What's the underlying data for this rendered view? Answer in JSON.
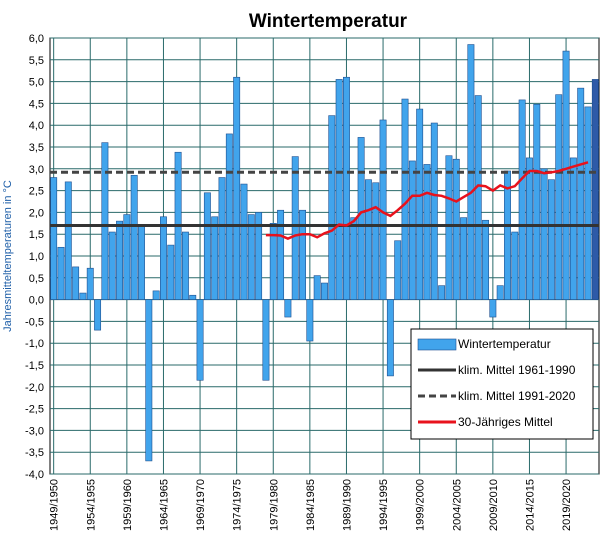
{
  "chart_data": {
    "type": "bar",
    "title": "Wintertemperatur",
    "ylabel": "Jahresmitteltemperaturen in °C",
    "xlabel": "",
    "ylim": [
      -4.0,
      6.0
    ],
    "ytick_labels": [
      "6,0",
      "5,5",
      "5,0",
      "4,5",
      "4,0",
      "3,5",
      "3,0",
      "2,5",
      "2,0",
      "1,5",
      "1,0",
      "0,5",
      "0,0",
      "-0,5",
      "-1,0",
      "-1,5",
      "-2,0",
      "-2,5",
      "-3,0",
      "-3,5",
      "-4,0"
    ],
    "xtick_labels": [
      "1949/1950",
      "1954/1955",
      "1959/1960",
      "1964/1965",
      "1969/1970",
      "1974/1975",
      "1979/1980",
      "1984/1985",
      "1989/1990",
      "1994/1995",
      "1999/2000",
      "2004/2005",
      "2009/2010",
      "2014/2015",
      "2019/2020"
    ],
    "grid": true,
    "legend_position": "lower-right",
    "series": [
      {
        "name": "Wintertemperatur",
        "type": "bar",
        "color": "#41a4ec",
        "highlight_color": "#2e5aa8",
        "first_season": "1949/1950",
        "values": [
          2.8,
          1.2,
          2.7,
          0.75,
          0.15,
          0.72,
          -0.7,
          3.6,
          1.55,
          1.8,
          1.95,
          2.85,
          1.7,
          -3.7,
          0.2,
          1.9,
          1.25,
          3.38,
          1.55,
          0.1,
          -1.85,
          2.45,
          1.9,
          2.8,
          3.8,
          5.1,
          2.65,
          1.95,
          2.0,
          -1.85,
          1.75,
          2.05,
          -0.4,
          3.28,
          2.05,
          -0.95,
          0.55,
          0.38,
          4.22,
          5.05,
          5.1,
          1.88,
          3.72,
          2.75,
          2.68,
          4.12,
          -1.75,
          1.35,
          4.6,
          3.18,
          4.37,
          3.1,
          4.05,
          0.32,
          3.3,
          3.22,
          1.88,
          5.85,
          4.68,
          1.82,
          -0.4,
          0.32,
          2.95,
          1.55,
          4.58,
          3.25,
          4.48,
          3.0,
          2.75,
          4.7,
          5.7,
          3.25,
          4.85,
          4.42,
          5.05
        ]
      },
      {
        "name": "klim. Mittel 1961-1990",
        "type": "hline",
        "value": 1.7,
        "color": "#333333"
      },
      {
        "name": "klim. Mittel 1991-2020",
        "type": "hline",
        "value": 2.92,
        "color": "#444444",
        "dashed": true
      },
      {
        "name": "30-Jähriges Mittel",
        "type": "line",
        "color": "#e8121c",
        "start_index": 29,
        "values": [
          1.48,
          1.48,
          1.47,
          1.4,
          1.47,
          1.5,
          1.5,
          1.43,
          1.52,
          1.58,
          1.72,
          1.7,
          1.8,
          2.0,
          2.05,
          2.12,
          2.0,
          1.92,
          2.05,
          2.2,
          2.38,
          2.38,
          2.45,
          2.4,
          2.38,
          2.32,
          2.25,
          2.35,
          2.45,
          2.62,
          2.6,
          2.5,
          2.62,
          2.55,
          2.6,
          2.78,
          2.95,
          2.95,
          2.9,
          2.92,
          2.95,
          3.0,
          3.05,
          3.1,
          3.15
        ]
      }
    ]
  }
}
